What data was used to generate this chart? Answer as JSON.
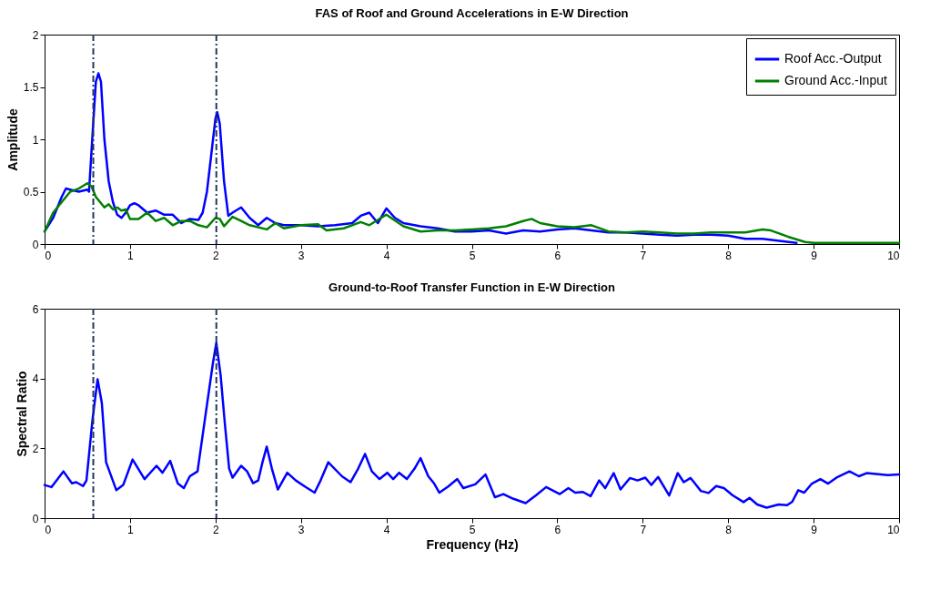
{
  "chart_data": [
    {
      "type": "line",
      "title": "FAS of Roof and Ground Accelerations in E-W Direction",
      "ylabel": "Amplitude",
      "xlim": [
        0,
        10
      ],
      "xticks": [
        0,
        1,
        2,
        3,
        4,
        5,
        6,
        7,
        8,
        9,
        10
      ],
      "ylim": [
        0,
        2
      ],
      "yticks": [
        0,
        0.5,
        1,
        1.5,
        2
      ],
      "legend": "top right",
      "line_style": "solid",
      "marker": "none",
      "series": [
        {
          "name": "Roof Acc.-Output",
          "color": "#0000ff",
          "x": [
            0,
            0.1,
            0.2,
            0.25,
            0.3,
            0.4,
            0.5,
            0.52,
            0.55,
            0.6,
            0.63,
            0.66,
            0.7,
            0.75,
            0.8,
            0.85,
            0.9,
            0.95,
            1.0,
            1.05,
            1.1,
            1.2,
            1.3,
            1.4,
            1.5,
            1.6,
            1.7,
            1.8,
            1.85,
            1.9,
            1.95,
            2.0,
            2.02,
            2.05,
            2.1,
            2.15,
            2.2,
            2.3,
            2.4,
            2.5,
            2.6,
            2.7,
            2.8,
            3.0,
            3.2,
            3.4,
            3.6,
            3.7,
            3.8,
            3.9,
            4.0,
            4.1,
            4.2,
            4.4,
            4.6,
            4.8,
            5.0,
            5.2,
            5.4,
            5.6,
            5.8,
            6.0,
            6.2,
            6.4,
            6.6,
            6.8,
            7.0,
            7.2,
            7.4,
            7.6,
            7.8,
            8.0,
            8.2,
            8.4,
            8.6,
            8.8
          ],
          "values": [
            0.12,
            0.25,
            0.45,
            0.53,
            0.52,
            0.5,
            0.52,
            0.5,
            0.9,
            1.55,
            1.63,
            1.55,
            1.0,
            0.6,
            0.4,
            0.28,
            0.25,
            0.3,
            0.37,
            0.39,
            0.37,
            0.3,
            0.32,
            0.28,
            0.28,
            0.2,
            0.24,
            0.23,
            0.3,
            0.5,
            0.85,
            1.2,
            1.26,
            1.15,
            0.6,
            0.27,
            0.3,
            0.35,
            0.25,
            0.18,
            0.25,
            0.2,
            0.18,
            0.18,
            0.17,
            0.18,
            0.2,
            0.27,
            0.3,
            0.2,
            0.34,
            0.25,
            0.2,
            0.17,
            0.15,
            0.12,
            0.12,
            0.13,
            0.1,
            0.13,
            0.12,
            0.14,
            0.15,
            0.13,
            0.11,
            0.11,
            0.1,
            0.09,
            0.08,
            0.09,
            0.09,
            0.08,
            0.05,
            0.05,
            0.03,
            0.01
          ]
        },
        {
          "name": "Ground Acc.-Input",
          "color": "#008000",
          "x": [
            0,
            0.1,
            0.2,
            0.3,
            0.4,
            0.5,
            0.55,
            0.6,
            0.7,
            0.75,
            0.8,
            0.85,
            0.9,
            0.95,
            1.0,
            1.1,
            1.2,
            1.3,
            1.4,
            1.5,
            1.6,
            1.7,
            1.8,
            1.9,
            2.0,
            2.05,
            2.1,
            2.2,
            2.3,
            2.4,
            2.6,
            2.7,
            2.8,
            3.0,
            3.2,
            3.3,
            3.5,
            3.7,
            3.8,
            4.0,
            4.2,
            4.4,
            4.6,
            4.8,
            5.0,
            5.2,
            5.4,
            5.6,
            5.7,
            5.8,
            6.0,
            6.2,
            6.4,
            6.6,
            6.8,
            7.0,
            7.2,
            7.4,
            7.6,
            7.8,
            8.0,
            8.2,
            8.4,
            8.5,
            8.7,
            8.9,
            9.0,
            10
          ],
          "values": [
            0.12,
            0.3,
            0.4,
            0.5,
            0.53,
            0.58,
            0.55,
            0.45,
            0.35,
            0.38,
            0.33,
            0.35,
            0.32,
            0.33,
            0.24,
            0.24,
            0.3,
            0.22,
            0.25,
            0.18,
            0.22,
            0.22,
            0.18,
            0.16,
            0.25,
            0.24,
            0.17,
            0.26,
            0.22,
            0.18,
            0.14,
            0.2,
            0.15,
            0.18,
            0.19,
            0.13,
            0.15,
            0.21,
            0.18,
            0.28,
            0.17,
            0.12,
            0.13,
            0.13,
            0.14,
            0.15,
            0.17,
            0.22,
            0.24,
            0.2,
            0.17,
            0.16,
            0.18,
            0.12,
            0.11,
            0.12,
            0.11,
            0.1,
            0.1,
            0.11,
            0.11,
            0.11,
            0.14,
            0.13,
            0.07,
            0.02,
            0.01,
            0.01
          ]
        }
      ],
      "ref_lines": [
        {
          "axis": "x",
          "value": 0.57,
          "color": "#1f3a5a",
          "line_style": "dashdot"
        },
        {
          "axis": "x",
          "value": 2.01,
          "color": "#1f3a5a",
          "line_style": "dashdot"
        }
      ]
    },
    {
      "type": "line",
      "title": "Ground-to-Roof Transfer Function in E-W Direction",
      "xlabel": "Frequency (Hz)",
      "ylabel": "Spectral Ratio",
      "xlim": [
        0,
        10
      ],
      "xticks": [
        0,
        1,
        2,
        3,
        4,
        5,
        6,
        7,
        8,
        9,
        10
      ],
      "ylim": [
        0,
        6
      ],
      "yticks": [
        0,
        2,
        4,
        6
      ],
      "line_style": "solid",
      "marker": "none",
      "series": [
        {
          "color": "#0000ff",
          "x": [
            0,
            0.08,
            0.22,
            0.32,
            0.37,
            0.45,
            0.49,
            0.56,
            0.62,
            0.67,
            0.72,
            0.84,
            0.92,
            1.03,
            1.17,
            1.31,
            1.38,
            1.47,
            1.56,
            1.63,
            1.7,
            1.79,
            1.88,
            1.97,
            2.01,
            2.06,
            2.11,
            2.16,
            2.2,
            2.3,
            2.37,
            2.44,
            2.5,
            2.55,
            2.6,
            2.66,
            2.73,
            2.84,
            2.94,
            3.05,
            3.16,
            3.23,
            3.32,
            3.48,
            3.58,
            3.67,
            3.75,
            3.83,
            3.92,
            4.01,
            4.08,
            4.15,
            4.24,
            4.33,
            4.4,
            4.49,
            4.56,
            4.62,
            4.72,
            4.83,
            4.9,
            5.04,
            5.16,
            5.27,
            5.37,
            5.48,
            5.63,
            5.75,
            5.87,
            6.03,
            6.13,
            6.21,
            6.3,
            6.39,
            6.49,
            6.56,
            6.66,
            6.74,
            6.85,
            6.94,
            7.03,
            7.1,
            7.18,
            7.31,
            7.41,
            7.48,
            7.56,
            7.68,
            7.77,
            7.86,
            7.95,
            8.05,
            8.18,
            8.25,
            8.34,
            8.45,
            8.59,
            8.69,
            8.75,
            8.82,
            8.89,
            8.98,
            9.08,
            9.17,
            9.28,
            9.42,
            9.53,
            9.62,
            9.87,
            10
          ],
          "values": [
            0.95,
            0.89,
            1.34,
            1.0,
            1.03,
            0.92,
            1.08,
            2.8,
            3.98,
            3.3,
            1.6,
            0.8,
            0.95,
            1.68,
            1.12,
            1.5,
            1.3,
            1.64,
            0.99,
            0.86,
            1.2,
            1.34,
            2.9,
            4.44,
            5.02,
            4.1,
            2.7,
            1.42,
            1.16,
            1.5,
            1.34,
            1.0,
            1.08,
            1.6,
            2.05,
            1.42,
            0.82,
            1.3,
            1.08,
            0.9,
            0.73,
            1.08,
            1.6,
            1.2,
            1.03,
            1.42,
            1.84,
            1.34,
            1.12,
            1.3,
            1.12,
            1.3,
            1.12,
            1.42,
            1.72,
            1.2,
            0.99,
            0.73,
            0.9,
            1.12,
            0.86,
            0.97,
            1.25,
            0.6,
            0.69,
            0.56,
            0.43,
            0.65,
            0.89,
            0.69,
            0.86,
            0.73,
            0.75,
            0.63,
            1.08,
            0.86,
            1.29,
            0.82,
            1.15,
            1.08,
            1.16,
            0.95,
            1.18,
            0.65,
            1.29,
            1.03,
            1.15,
            0.78,
            0.72,
            0.92,
            0.86,
            0.66,
            0.46,
            0.58,
            0.39,
            0.3,
            0.39,
            0.37,
            0.47,
            0.8,
            0.73,
            0.99,
            1.12,
            0.99,
            1.18,
            1.34,
            1.2,
            1.29,
            1.23,
            1.25
          ]
        }
      ],
      "ref_lines": [
        {
          "axis": "x",
          "value": 0.57,
          "color": "#1f3a5a",
          "line_style": "dashdot"
        },
        {
          "axis": "x",
          "value": 2.01,
          "color": "#1f3a5a",
          "line_style": "dashdot"
        }
      ]
    }
  ]
}
